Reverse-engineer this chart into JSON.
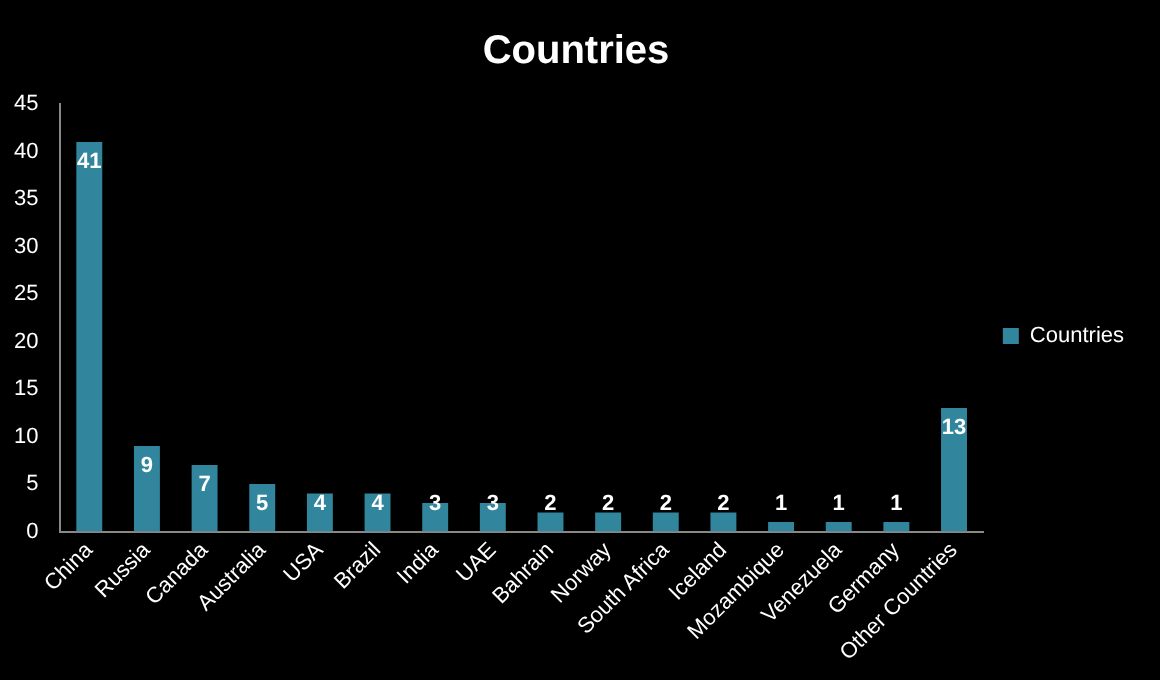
{
  "chart_data": {
    "type": "bar",
    "title": "Countries",
    "categories": [
      "China",
      "Russia",
      "Canada",
      "Australia",
      "USA",
      "Brazil",
      "India",
      "UAE",
      "Bahrain",
      "Norway",
      "South Africa",
      "Iceland",
      "Mozambique",
      "Venezuela",
      "Germany",
      "Other Countries"
    ],
    "series": [
      {
        "name": "Countries",
        "color": "#31859c",
        "values": [
          41,
          9,
          7,
          5,
          4,
          4,
          3,
          3,
          2,
          2,
          2,
          2,
          1,
          1,
          1,
          13
        ]
      }
    ],
    "ylim": [
      0,
      45
    ],
    "yticks": [
      0,
      5,
      10,
      15,
      20,
      25,
      30,
      35,
      40,
      45
    ],
    "grid": false,
    "legend": "right",
    "data_labels": true
  }
}
